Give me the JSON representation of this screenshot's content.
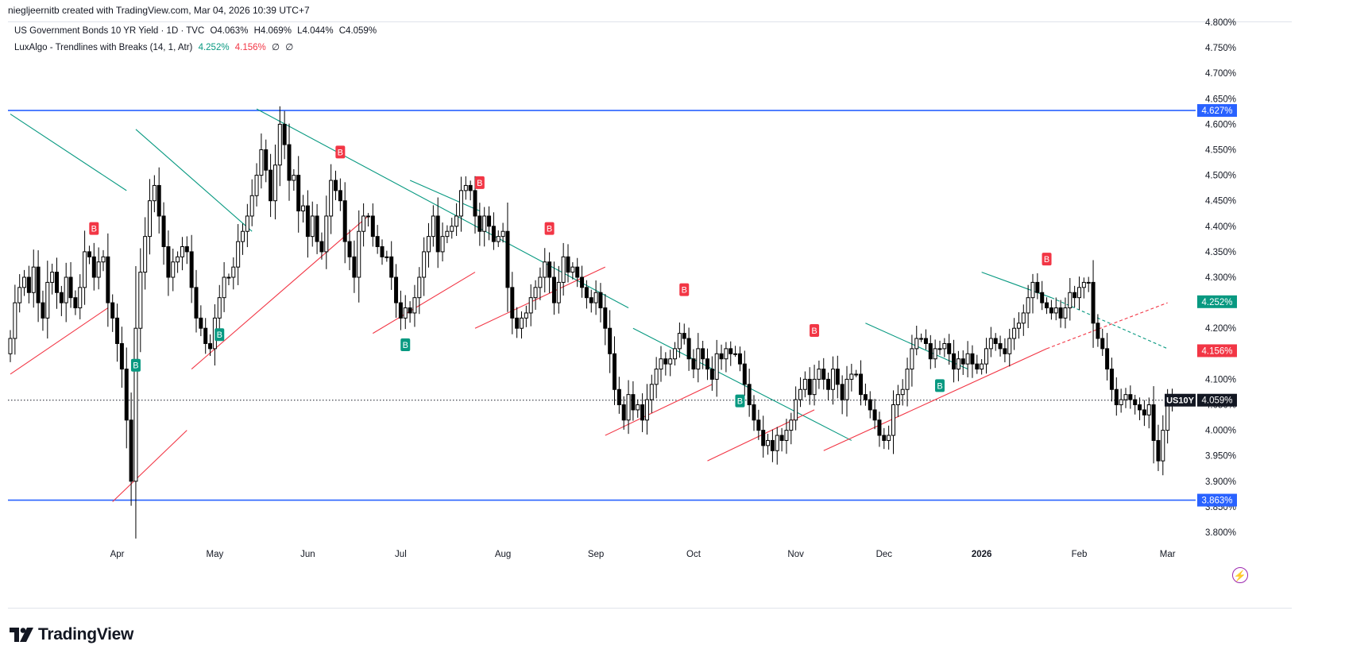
{
  "header": {
    "author_line": "niegljeernitb created with TradingView.com, Mar 04, 2026 10:39 UTC+7"
  },
  "legend": {
    "symbol_line": "US Government Bonds 10 YR Yield · 1D · TVC",
    "o": "O4.063%",
    "h": "H4.069%",
    "l": "L4.044%",
    "c": "C4.059%",
    "indicator_name": "LuxAlgo - Trendlines with Breaks (14, 1, Atr)",
    "ind_val1": "4.252%",
    "ind_val2": "4.156%",
    "ind_val3": "∅",
    "ind_val4": "∅"
  },
  "colors": {
    "up": "#ffffff",
    "down": "#000000",
    "wick": "#000000",
    "green": "#089981",
    "red": "#f23645",
    "blue": "#2962ff",
    "text": "#131722"
  },
  "brand": {
    "name": "TradingView"
  },
  "chart_data": {
    "type": "candlestick",
    "symbol": "US10Y",
    "timeframe": "1D",
    "ylim": [
      3.77,
      4.81
    ],
    "y_ticks": [
      "4.800%",
      "4.750%",
      "4.700%",
      "4.650%",
      "4.600%",
      "4.550%",
      "4.500%",
      "4.450%",
      "4.400%",
      "4.350%",
      "4.300%",
      "4.250%",
      "4.200%",
      "4.150%",
      "4.100%",
      "4.050%",
      "4.000%",
      "3.950%",
      "3.900%",
      "3.850%",
      "3.800%"
    ],
    "x_labels": [
      {
        "label": "Apr",
        "bar": 23
      },
      {
        "label": "May",
        "bar": 44
      },
      {
        "label": "Jun",
        "bar": 64
      },
      {
        "label": "Jul",
        "bar": 84
      },
      {
        "label": "Aug",
        "bar": 106
      },
      {
        "label": "Sep",
        "bar": 126
      },
      {
        "label": "Oct",
        "bar": 147
      },
      {
        "label": "Nov",
        "bar": 169
      },
      {
        "label": "Dec",
        "bar": 188
      },
      {
        "label": "2026",
        "bar": 209
      },
      {
        "label": "Feb",
        "bar": 230
      },
      {
        "label": "Mar",
        "bar": 249
      }
    ],
    "closes": [
      4.18,
      4.25,
      4.28,
      4.3,
      4.27,
      4.32,
      4.25,
      4.22,
      4.29,
      4.31,
      4.27,
      4.25,
      4.3,
      4.26,
      4.24,
      4.28,
      4.35,
      4.34,
      4.3,
      4.33,
      4.34,
      4.25,
      4.22,
      4.17,
      4.12,
      4.02,
      3.9,
      4.2,
      4.31,
      4.38,
      4.45,
      4.48,
      4.42,
      4.36,
      4.3,
      4.33,
      4.34,
      4.36,
      4.35,
      4.28,
      4.22,
      4.2,
      4.17,
      4.16,
      4.22,
      4.26,
      4.3,
      4.3,
      4.32,
      4.37,
      4.39,
      4.42,
      4.46,
      4.5,
      4.55,
      4.51,
      4.45,
      4.52,
      4.6,
      4.56,
      4.49,
      4.5,
      4.43,
      4.44,
      4.38,
      4.42,
      4.37,
      4.35,
      4.42,
      4.49,
      4.47,
      4.45,
      4.37,
      4.34,
      4.3,
      4.39,
      4.42,
      4.42,
      4.38,
      4.36,
      4.34,
      4.34,
      4.3,
      4.25,
      4.22,
      4.24,
      4.23,
      4.26,
      4.3,
      4.35,
      4.38,
      4.42,
      4.35,
      4.38,
      4.39,
      4.4,
      4.42,
      4.47,
      4.48,
      4.47,
      4.42,
      4.39,
      4.42,
      4.4,
      4.37,
      4.38,
      4.39,
      4.28,
      4.22,
      4.2,
      4.22,
      4.23,
      4.26,
      4.28,
      4.3,
      4.33,
      4.3,
      4.25,
      4.29,
      4.34,
      4.31,
      4.32,
      4.3,
      4.28,
      4.26,
      4.25,
      4.27,
      4.24,
      4.2,
      4.15,
      4.08,
      4.05,
      4.02,
      4.07,
      4.04,
      4.05,
      4.02,
      4.06,
      4.09,
      4.12,
      4.14,
      4.13,
      4.14,
      4.16,
      4.19,
      4.18,
      4.14,
      4.12,
      4.16,
      4.14,
      4.12,
      4.1,
      4.15,
      4.14,
      4.16,
      4.15,
      4.15,
      4.13,
      4.09,
      4.05,
      4.02,
      4.0,
      3.97,
      3.98,
      3.96,
      3.99,
      3.98,
      4.0,
      4.02,
      4.06,
      4.08,
      4.1,
      4.07,
      4.1,
      4.12,
      4.1,
      4.08,
      4.12,
      4.09,
      4.06,
      4.1,
      4.11,
      4.11,
      4.07,
      4.06,
      4.04,
      4.02,
      3.99,
      3.98,
      3.99,
      4.05,
      4.07,
      4.08,
      4.12,
      4.16,
      4.18,
      4.18,
      4.17,
      4.14,
      4.16,
      4.16,
      4.17,
      4.15,
      4.12,
      4.14,
      4.13,
      4.15,
      4.13,
      4.12,
      4.13,
      4.16,
      4.18,
      4.17,
      4.16,
      4.15,
      4.18,
      4.2,
      4.21,
      4.23,
      4.26,
      4.29,
      4.27,
      4.25,
      4.24,
      4.23,
      4.24,
      4.22,
      4.24,
      4.27,
      4.26,
      4.28,
      4.29,
      4.29,
      4.21,
      4.18,
      4.16,
      4.12,
      4.08,
      4.05,
      4.06,
      4.07,
      4.06,
      4.05,
      4.04,
      4.03,
      4.05,
      3.98,
      3.94,
      4.0,
      4.05,
      4.06,
      4.059
    ]
  },
  "levels": [
    {
      "value": 4.627,
      "label": "4.627%",
      "color": "#2962ff"
    },
    {
      "value": 3.863,
      "label": "3.863%",
      "color": "#2962ff"
    }
  ],
  "price_tags": [
    {
      "value": 4.252,
      "label": "4.252%",
      "color": "#089981"
    },
    {
      "value": 4.156,
      "label": "4.156%",
      "color": "#f23645"
    },
    {
      "value": 4.059,
      "label": "4.059%",
      "color": "#131722",
      "symbol": "US10Y"
    }
  ],
  "break_markers": [
    {
      "bar": 18,
      "text": "B",
      "type": "red"
    },
    {
      "bar": 27,
      "text": "B",
      "type": "green"
    },
    {
      "bar": 45,
      "text": "B",
      "type": "green"
    },
    {
      "bar": 71,
      "text": "B",
      "type": "red"
    },
    {
      "bar": 85,
      "text": "B",
      "type": "green"
    },
    {
      "bar": 101,
      "text": "B",
      "type": "red"
    },
    {
      "bar": 116,
      "text": "B",
      "type": "red"
    },
    {
      "bar": 145,
      "text": "B",
      "type": "red"
    },
    {
      "bar": 157,
      "text": "B",
      "type": "green"
    },
    {
      "bar": 173,
      "text": "B",
      "type": "red"
    },
    {
      "bar": 200,
      "text": "B",
      "type": "green"
    },
    {
      "bar": 223,
      "text": "B",
      "type": "red"
    }
  ],
  "trendlines": [
    {
      "type": "green",
      "from": [
        0,
        4.62
      ],
      "to": [
        25,
        4.47
      ]
    },
    {
      "type": "green",
      "from": [
        27,
        4.59
      ],
      "to": [
        52,
        4.39
      ]
    },
    {
      "type": "green",
      "from": [
        53,
        4.63
      ],
      "to": [
        133,
        4.24
      ]
    },
    {
      "type": "green",
      "from": [
        86,
        4.49
      ],
      "to": [
        101,
        4.43
      ]
    },
    {
      "type": "green",
      "from": [
        134,
        4.2
      ],
      "to": [
        181,
        3.98
      ]
    },
    {
      "type": "green",
      "from": [
        184,
        4.21
      ],
      "to": [
        206,
        4.12
      ]
    },
    {
      "type": "green",
      "from": [
        209,
        4.31
      ],
      "to": [
        224,
        4.26
      ]
    },
    {
      "type": "green",
      "from": [
        224,
        4.26
      ],
      "to": [
        249,
        4.16
      ],
      "dashed": true
    },
    {
      "type": "red",
      "from": [
        0,
        4.11
      ],
      "to": [
        21,
        4.24
      ]
    },
    {
      "type": "red",
      "from": [
        22,
        3.86
      ],
      "to": [
        38,
        4.0
      ]
    },
    {
      "type": "red",
      "from": [
        39,
        4.12
      ],
      "to": [
        77,
        4.42
      ]
    },
    {
      "type": "red",
      "from": [
        78,
        4.19
      ],
      "to": [
        100,
        4.31
      ]
    },
    {
      "type": "red",
      "from": [
        100,
        4.2
      ],
      "to": [
        128,
        4.32
      ]
    },
    {
      "type": "red",
      "from": [
        128,
        3.99
      ],
      "to": [
        151,
        4.09
      ]
    },
    {
      "type": "red",
      "from": [
        150,
        3.94
      ],
      "to": [
        173,
        4.04
      ]
    },
    {
      "type": "red",
      "from": [
        175,
        3.96
      ],
      "to": [
        223,
        4.16
      ]
    },
    {
      "type": "red",
      "from": [
        223,
        4.16
      ],
      "to": [
        249,
        4.25
      ],
      "dashed": true
    }
  ]
}
